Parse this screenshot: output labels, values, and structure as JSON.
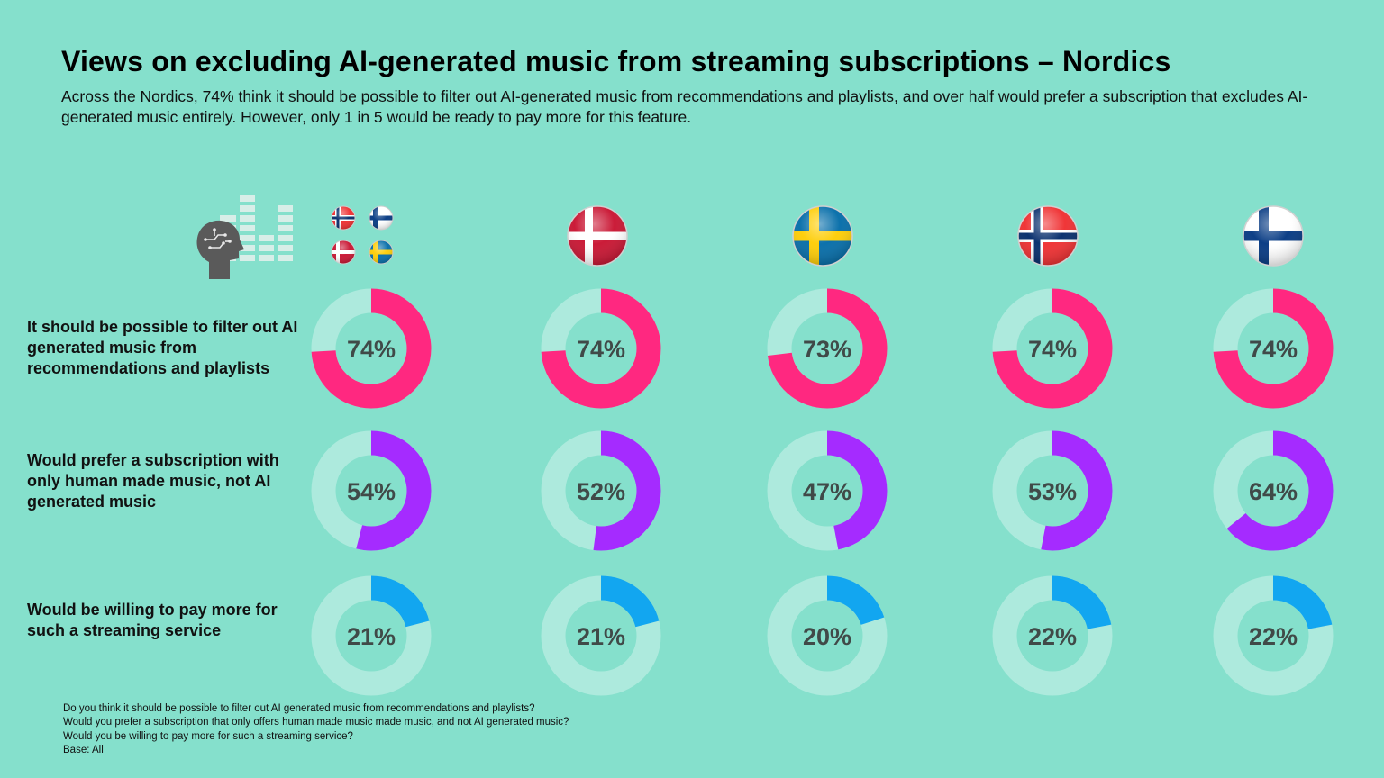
{
  "title": "Views on excluding AI-generated music from streaming subscriptions – Nordics",
  "subtitle": "Across the Nordics, 74% think it should be possible to filter out AI-generated music from recommendations and playlists, and over half would prefer a subscription that excludes AI-generated music entirely. However, only 1 in 5 would be ready to pay more for this feature.",
  "icons": {
    "header_graphic": "ai-head-equalizer-icon",
    "flags": [
      "nordics-four-flags-icon",
      "denmark-flag-icon",
      "sweden-flag-icon",
      "norway-flag-icon",
      "finland-flag-icon"
    ]
  },
  "colors": {
    "background": "#85E0CC",
    "ring_track": "#ADEADD",
    "filter": "#FF2880",
    "human_only": "#A52BFF",
    "pay_more": "#12A6F0",
    "value_text": "#404A48"
  },
  "chart_data": {
    "type": "donut-grid",
    "unit": "%",
    "columns": [
      "Nordics",
      "Denmark",
      "Sweden",
      "Norway",
      "Finland"
    ],
    "series": [
      {
        "label": "It should be possible to filter out AI generated music from recommendations and playlists",
        "color": "#FF2880",
        "values": [
          74,
          74,
          73,
          74,
          74
        ]
      },
      {
        "label": "Would prefer a subscription with only human made music, not AI generated music",
        "color": "#A52BFF",
        "values": [
          54,
          52,
          47,
          53,
          64
        ]
      },
      {
        "label": "Would be willing to pay more for such a streaming service",
        "color": "#12A6F0",
        "values": [
          21,
          21,
          20,
          22,
          22
        ]
      }
    ],
    "value_labels": [
      [
        "74%",
        "74%",
        "73%",
        "74%",
        "74%"
      ],
      [
        "54%",
        "52%",
        "47%",
        "53%",
        "64%"
      ],
      [
        "21%",
        "21%",
        "20%",
        "22%",
        "22%"
      ]
    ]
  },
  "footnotes": [
    "Do you think it should be possible to filter out AI generated music from recommendations and playlists?",
    "Would you prefer a subscription that only offers human made music made music, and not AI generated music?",
    "Would you be willing to pay more for such a streaming service?",
    "Base: All"
  ]
}
